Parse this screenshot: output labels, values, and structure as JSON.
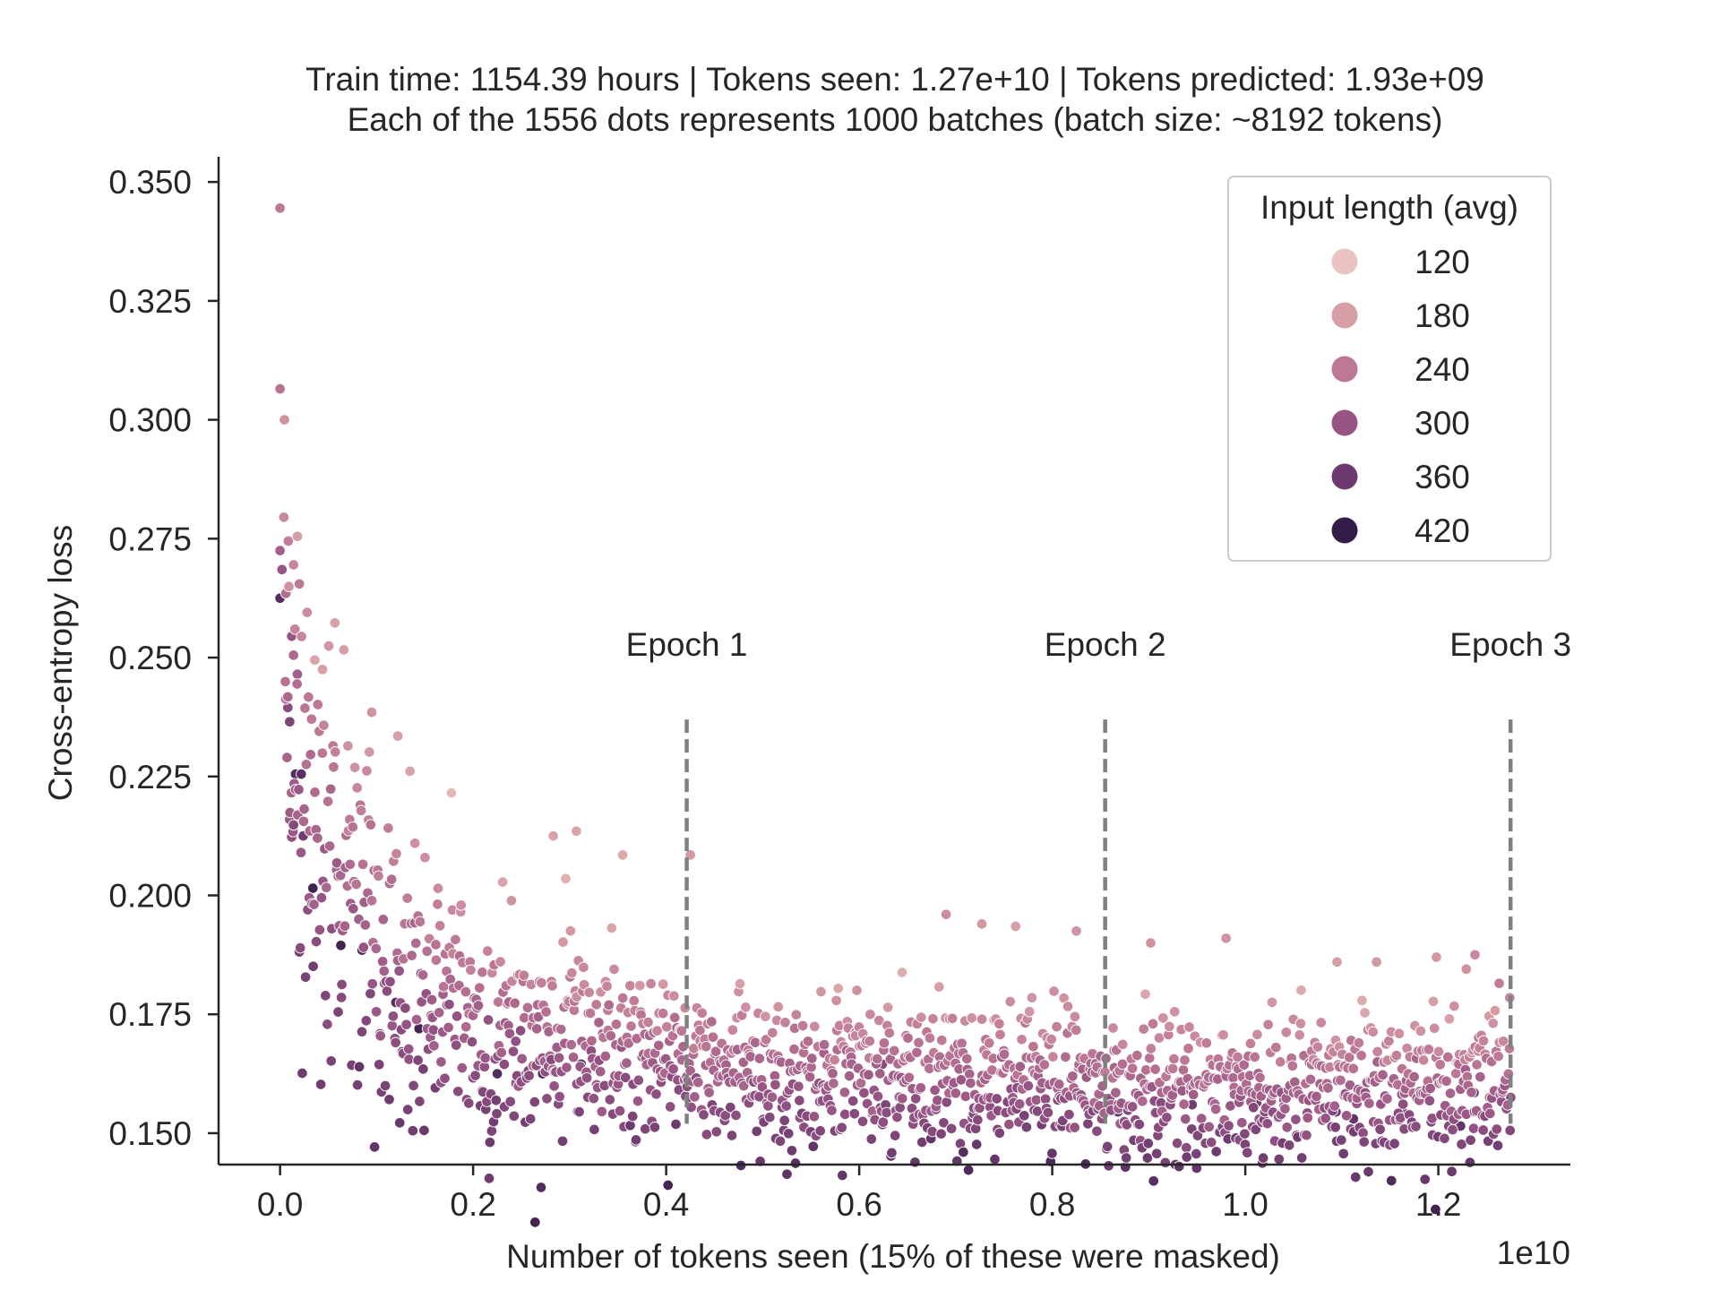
{
  "chart_data": {
    "type": "scatter",
    "title_line1": "Train time: 1154.39 hours | Tokens seen: 1.27e+10 | Tokens predicted: 1.93e+09",
    "title_line2": "Each of the 1556 dots represents 1000 batches (batch size: ~8192 tokens)",
    "xlabel": "Number of tokens seen (15% of these were masked)",
    "ylabel": "Cross-entropy loss",
    "x_offset_label": "1e10",
    "xlim": [
      -0.0637,
      1.3368
    ],
    "ylim": [
      0.1434,
      0.3553
    ],
    "x_ticks": [
      0.0,
      0.2,
      0.4,
      0.6,
      0.8,
      1.0,
      1.2
    ],
    "x_tick_labels": [
      "0.0",
      "0.2",
      "0.4",
      "0.6",
      "0.8",
      "1.0",
      "1.2"
    ],
    "y_ticks": [
      0.15,
      0.175,
      0.2,
      0.225,
      0.25,
      0.275,
      0.3,
      0.325,
      0.35
    ],
    "y_tick_labels": [
      "0.150",
      "0.175",
      "0.200",
      "0.225",
      "0.250",
      "0.275",
      "0.300",
      "0.325",
      "0.350"
    ],
    "epochs": [
      {
        "label": "Epoch 1",
        "x": 0.4213,
        "y_range": [
          0.152,
          0.237
        ]
      },
      {
        "label": "Epoch 2",
        "x": 0.8548,
        "y_range": [
          0.152,
          0.237
        ]
      },
      {
        "label": "Epoch 3",
        "x": 1.2748,
        "y_range": [
          0.152,
          0.237
        ]
      }
    ],
    "epoch_label_y": 0.2485,
    "hue": {
      "title": "Input length (avg)",
      "legend_values": [
        "120",
        "180",
        "240",
        "300",
        "360",
        "420"
      ],
      "legend_colors": [
        "#e9c4c0",
        "#d79ea5",
        "#bd7895",
        "#975585",
        "#6c3a6f",
        "#331d47"
      ],
      "range": [
        90,
        440
      ]
    },
    "point_count": 1556,
    "points": [
      [
        0.0,
        0.3445,
        230
      ],
      [
        0.0,
        0.3065,
        240
      ],
      [
        0.0045,
        0.3,
        180
      ],
      [
        0.004,
        0.2795,
        200
      ],
      [
        0.0,
        0.2725,
        280
      ],
      [
        0.002,
        0.2685,
        300
      ],
      [
        0.0,
        0.2625,
        400
      ],
      [
        0.0085,
        0.2745,
        220
      ],
      [
        0.018,
        0.2755,
        160
      ],
      [
        0.014,
        0.2695,
        200
      ],
      [
        0.006,
        0.2635,
        250
      ],
      [
        0.02,
        0.2655,
        230
      ],
      [
        0.028,
        0.2595,
        190
      ],
      [
        0.036,
        0.2495,
        150
      ],
      [
        0.044,
        0.2475,
        160
      ],
      [
        0.012,
        0.2545,
        300
      ],
      [
        0.014,
        0.2505,
        260
      ],
      [
        0.018,
        0.2465,
        280
      ],
      [
        0.008,
        0.2395,
        320
      ],
      [
        0.01,
        0.2365,
        340
      ],
      [
        0.016,
        0.2255,
        400
      ],
      [
        0.022,
        0.2255,
        390
      ],
      [
        0.024,
        0.2125,
        360
      ],
      [
        0.034,
        0.2015,
        420
      ],
      [
        0.063,
        0.1895,
        420
      ],
      [
        0.085,
        0.1885,
        410
      ],
      [
        0.12,
        0.1775,
        400
      ],
      [
        0.144,
        0.172,
        420
      ],
      [
        0.122,
        0.2335,
        160
      ],
      [
        0.095,
        0.2385,
        180
      ],
      [
        0.272,
        0.1625,
        400
      ],
      [
        0.312,
        0.1645,
        410
      ],
      [
        0.225,
        0.1625,
        400
      ],
      [
        0.307,
        0.2135,
        150
      ],
      [
        0.283,
        0.2125,
        150
      ],
      [
        0.355,
        0.2085,
        140
      ],
      [
        0.425,
        0.2085,
        170
      ],
      [
        0.472,
        0.1615,
        400
      ],
      [
        0.624,
        0.1645,
        330
      ],
      [
        0.727,
        0.194,
        170
      ],
      [
        0.69,
        0.196,
        190
      ],
      [
        0.762,
        0.1935,
        160
      ],
      [
        0.825,
        0.1925,
        180
      ],
      [
        0.902,
        0.19,
        180
      ],
      [
        0.98,
        0.191,
        180
      ],
      [
        0.868,
        0.1545,
        380
      ],
      [
        0.872,
        0.1555,
        370
      ],
      [
        0.89,
        0.1575,
        360
      ],
      [
        0.945,
        0.156,
        360
      ],
      [
        1.012,
        0.1565,
        360
      ],
      [
        1.04,
        0.157,
        330
      ],
      [
        1.094,
        0.1545,
        370
      ],
      [
        1.112,
        0.153,
        380
      ],
      [
        1.163,
        0.1545,
        360
      ],
      [
        1.207,
        0.1545,
        360
      ],
      [
        1.223,
        0.1515,
        380
      ],
      [
        1.237,
        0.1585,
        360
      ],
      [
        1.095,
        0.186,
        160
      ],
      [
        1.136,
        0.186,
        170
      ],
      [
        1.198,
        0.187,
        170
      ],
      [
        1.238,
        0.1875,
        200
      ],
      [
        1.229,
        0.1845,
        180
      ],
      [
        1.263,
        0.1815,
        220
      ],
      [
        1.274,
        0.1785,
        200
      ],
      [
        1.275,
        0.1575,
        320
      ]
    ]
  }
}
